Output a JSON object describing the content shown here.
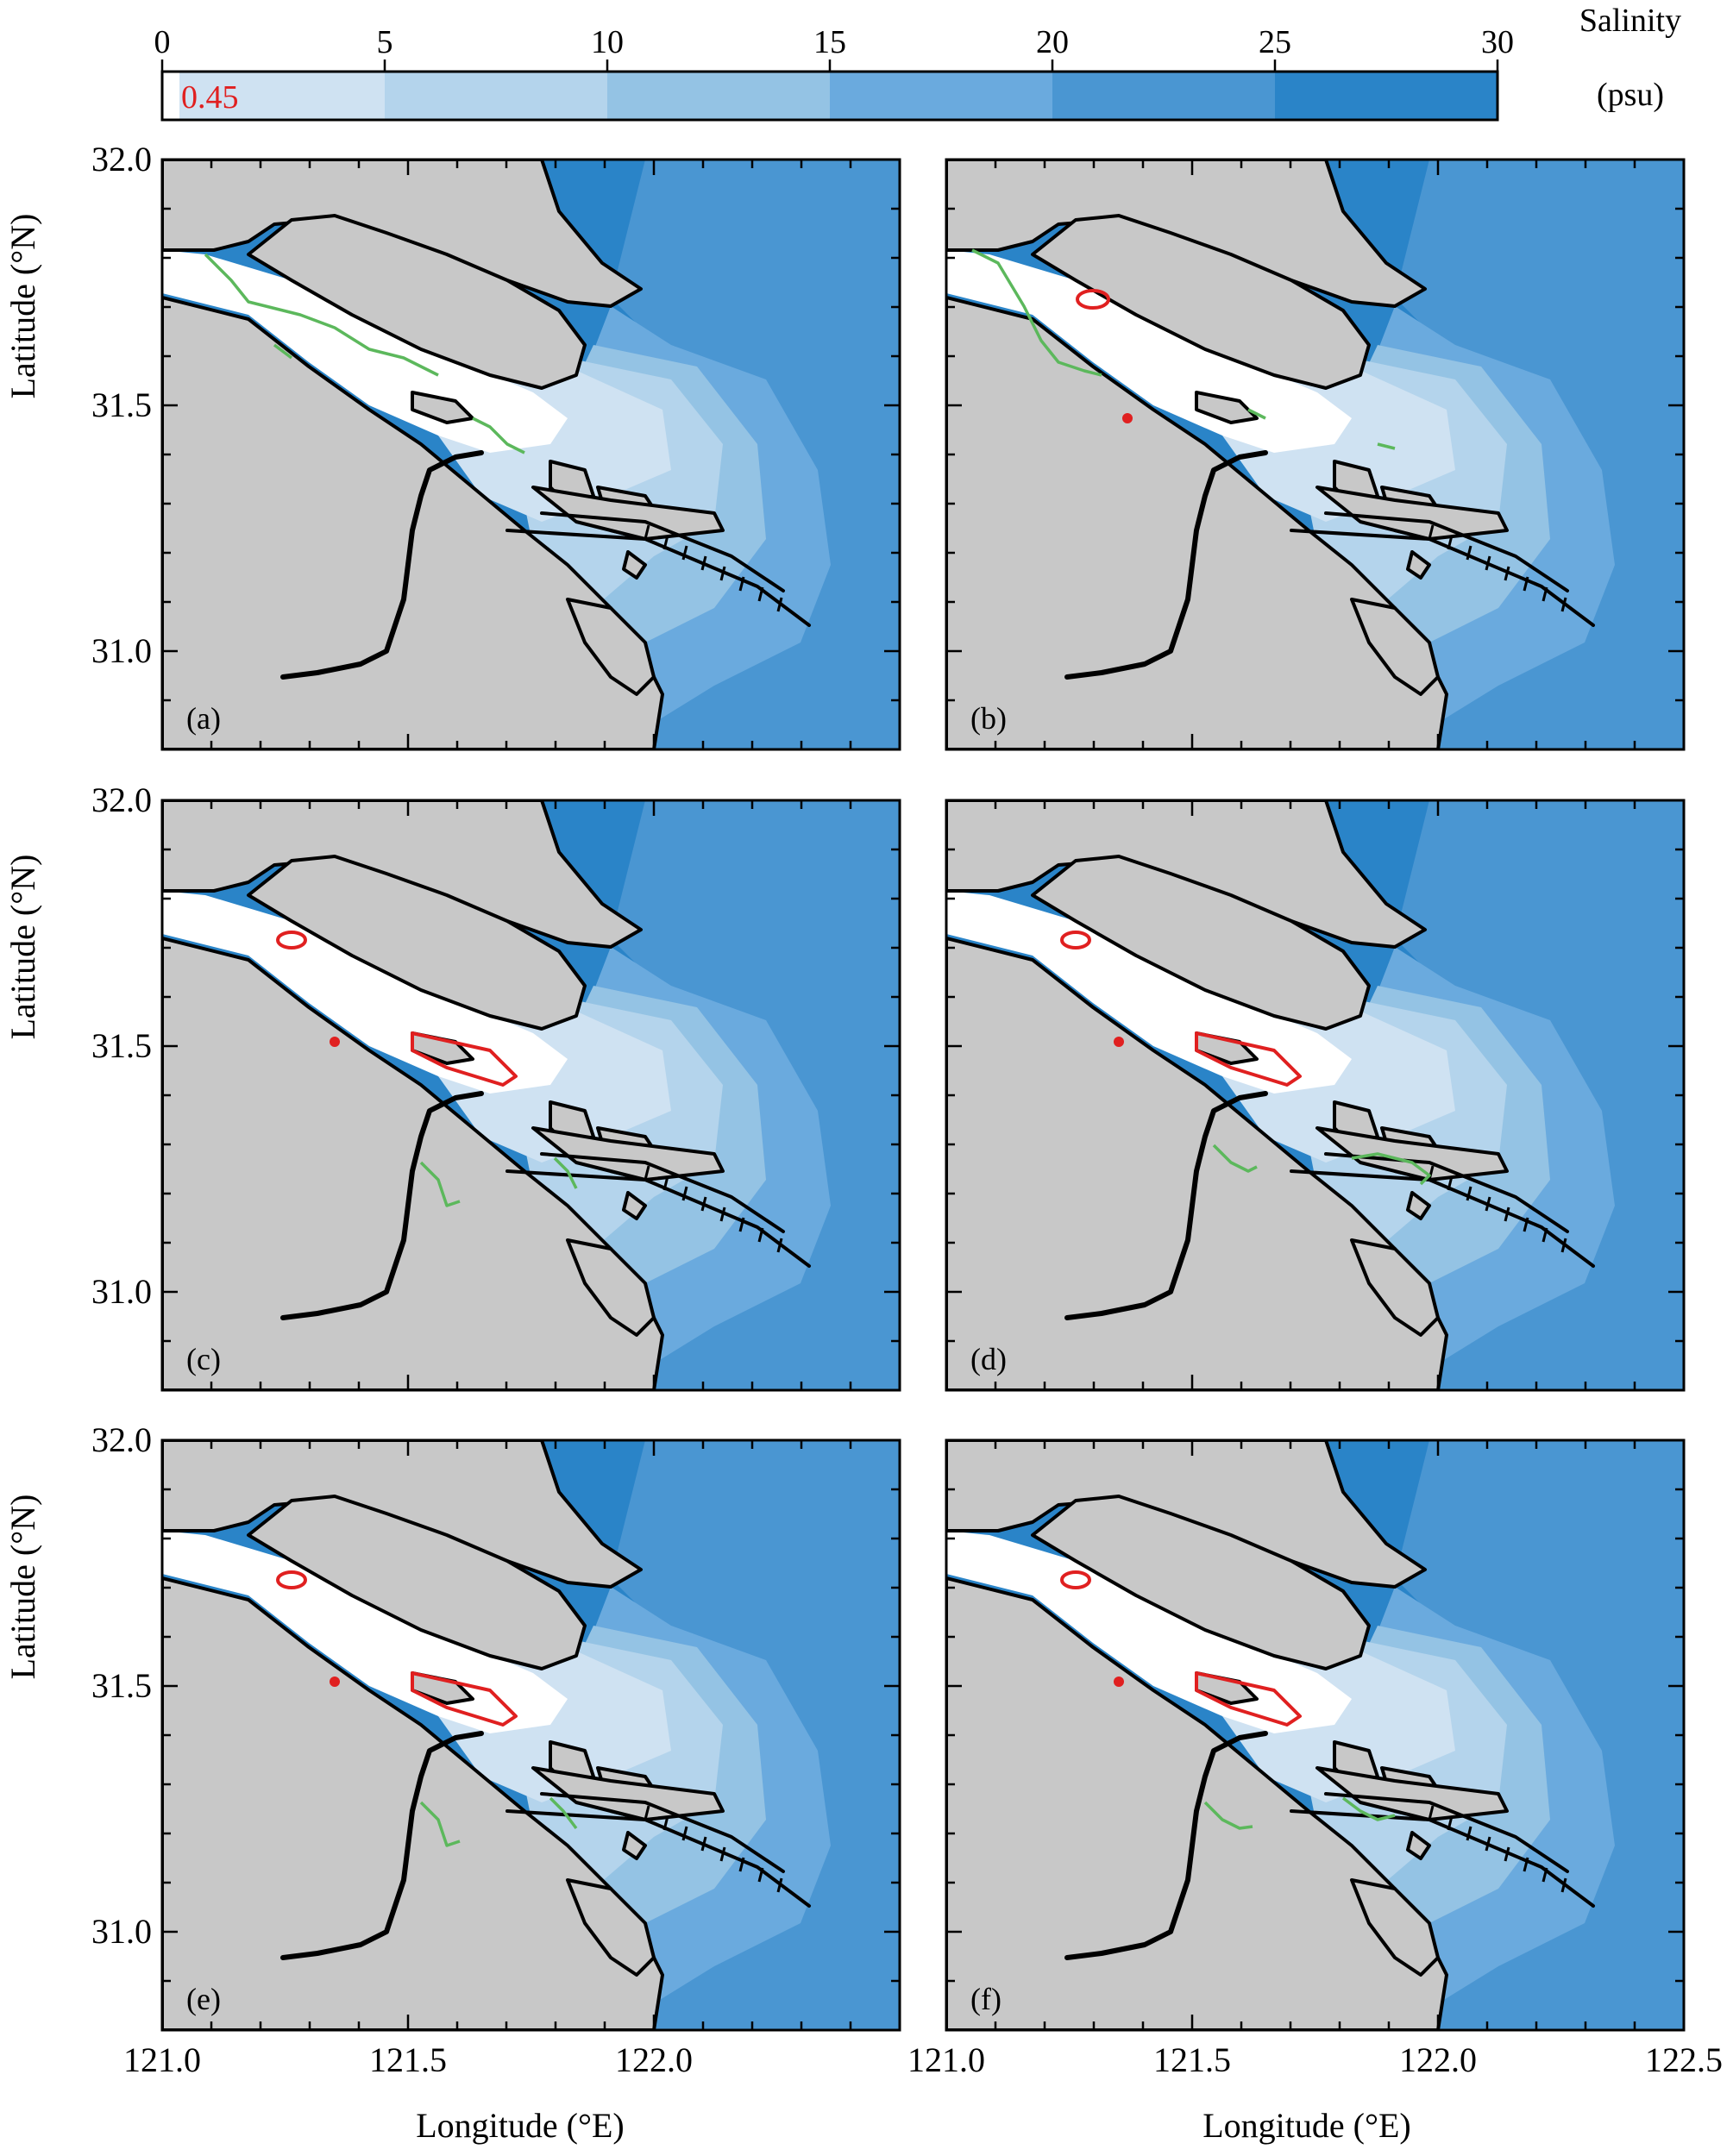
{
  "colorbar": {
    "ticks": [
      "0",
      "5",
      "10",
      "15",
      "20",
      "25",
      "30"
    ],
    "title": "Salinity",
    "unit": "(psu)",
    "threshold_label": "0.45",
    "colors": [
      "#e6f0f8",
      "#cfe2f2",
      "#b4d4ec",
      "#94c3e4",
      "#6aaade",
      "#4a96d2",
      "#2a84c8"
    ]
  },
  "axes": {
    "ylabel": "Latitude (°N)",
    "xlabel": "Longitude (°E)",
    "yticks": [
      "32.0",
      "31.5",
      "31.0"
    ],
    "xticks_left": [
      "121.0",
      "121.5",
      "122.0"
    ],
    "xticks_right": [
      "121.0",
      "121.5",
      "122.0",
      "122.5"
    ]
  },
  "panels": [
    {
      "label": "(a)",
      "red_isohaline": false,
      "green_contour": "a"
    },
    {
      "label": "(b)",
      "red_isohaline": true,
      "green_contour": "b"
    },
    {
      "label": "(c)",
      "red_isohaline": true,
      "green_contour": "c"
    },
    {
      "label": "(d)",
      "red_isohaline": true,
      "green_contour": "d"
    },
    {
      "label": "(e)",
      "red_isohaline": true,
      "green_contour": "e"
    },
    {
      "label": "(f)",
      "red_isohaline": true,
      "green_contour": "f"
    }
  ],
  "map": {
    "lon_range": [
      121.0,
      122.5
    ],
    "lat_range": [
      30.8,
      32.0
    ],
    "colors": {
      "land": "#c8c8c8",
      "ocean": "#2a84c8",
      "fresh": "#ffffff",
      "isohaline_green": "#5cb85c",
      "isohaline_red": "#e02020"
    }
  }
}
